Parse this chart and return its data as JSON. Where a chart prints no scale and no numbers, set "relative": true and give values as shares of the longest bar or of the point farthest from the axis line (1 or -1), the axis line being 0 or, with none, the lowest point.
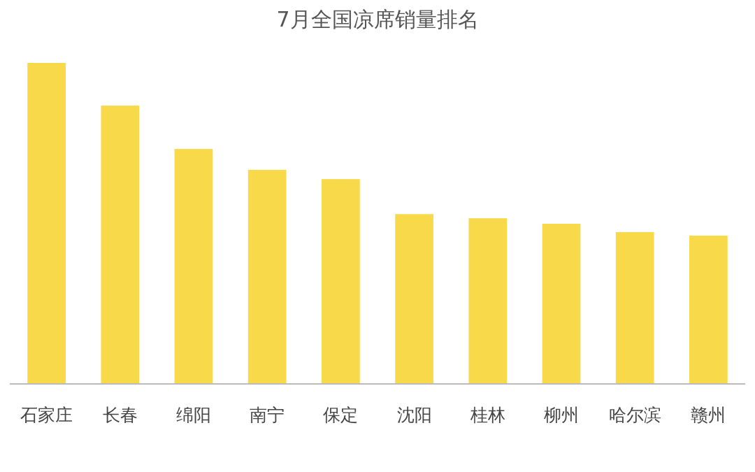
{
  "chart_data": {
    "type": "bar",
    "title": "7月全国凉席销量排名",
    "relative": true,
    "color": "#f8d94a",
    "categories": [
      "石家庄",
      "长春",
      "绵阳",
      "南宁",
      "保定",
      "沈阳",
      "桂林",
      "柳州",
      "哈尔滨",
      "赣州"
    ],
    "values": [
      1,
      0.867,
      0.732,
      0.667,
      0.638,
      0.529,
      0.516,
      0.499,
      0.473,
      0.462
    ]
  }
}
